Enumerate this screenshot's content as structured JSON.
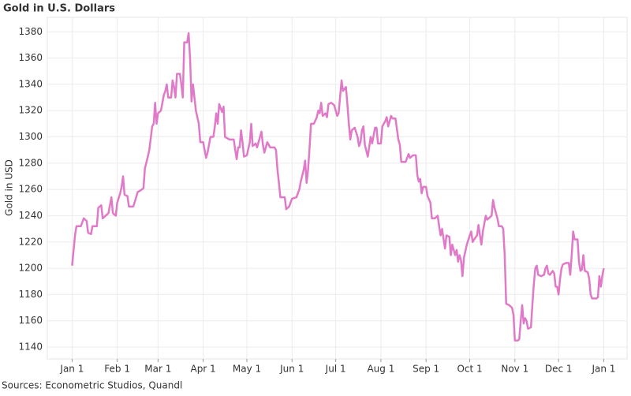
{
  "chart_data": {
    "type": "line",
    "title": "Gold in U.S. Dollars",
    "y_label": "Gold in USD",
    "source": "Sources: Econometric Studios, Quandl",
    "xlim": [
      -17,
      381
    ],
    "ylim": [
      1131,
      1391
    ],
    "xticks": [
      {
        "value": 0,
        "label": "Jan 1"
      },
      {
        "value": 31,
        "label": "Feb 1"
      },
      {
        "value": 59,
        "label": "Mar 1"
      },
      {
        "value": 90,
        "label": "Apr 1"
      },
      {
        "value": 120,
        "label": "May 1"
      },
      {
        "value": 151,
        "label": "Jun 1"
      },
      {
        "value": 181,
        "label": "Jul 1"
      },
      {
        "value": 212,
        "label": "Aug 1"
      },
      {
        "value": 243,
        "label": "Sep 1"
      },
      {
        "value": 273,
        "label": "Oct 1"
      },
      {
        "value": 304,
        "label": "Nov 1"
      },
      {
        "value": 334,
        "label": "Dec 1"
      },
      {
        "value": 365,
        "label": "Jan 1"
      }
    ],
    "yticks": [
      1140,
      1160,
      1180,
      1200,
      1220,
      1240,
      1260,
      1280,
      1300,
      1320,
      1340,
      1360,
      1380
    ],
    "grid": true,
    "x": [
      0,
      2,
      3,
      6,
      8,
      10,
      11,
      13,
      14,
      17,
      18,
      20,
      21,
      24,
      25,
      27,
      28,
      30,
      31,
      33,
      34,
      35,
      36,
      38,
      39,
      42,
      44,
      45,
      48,
      49,
      50,
      52,
      53,
      55,
      56,
      57,
      58,
      59,
      61,
      63,
      64,
      65,
      66,
      68,
      69,
      70,
      71,
      72,
      74,
      75,
      76,
      77,
      79,
      80,
      81,
      82,
      83,
      84,
      85,
      86,
      87,
      88,
      90,
      91,
      92,
      93,
      95,
      97,
      98,
      99,
      100,
      101,
      103,
      104,
      105,
      108,
      111,
      112,
      113,
      114,
      115,
      116,
      117,
      118,
      120,
      122,
      123,
      124,
      126,
      127,
      129,
      130,
      131,
      132,
      134,
      136,
      139,
      140,
      141,
      142,
      143,
      146,
      147,
      149,
      151,
      154,
      156,
      157,
      159,
      160,
      161,
      162,
      163,
      164,
      166,
      168,
      169,
      170,
      171,
      172,
      174,
      175,
      176,
      178,
      180,
      181,
      182,
      183,
      185,
      186,
      188,
      189,
      190,
      191,
      192,
      194,
      196,
      197,
      198,
      199,
      200,
      201,
      203,
      205,
      206,
      208,
      209,
      210,
      212,
      213,
      215,
      216,
      217,
      219,
      220,
      222,
      224,
      225,
      226,
      229,
      230,
      231,
      232,
      234,
      236,
      237,
      238,
      239,
      240,
      241,
      243,
      244,
      246,
      247,
      249,
      251,
      252,
      253,
      254,
      256,
      257,
      259,
      260,
      261,
      263,
      264,
      265,
      266,
      267,
      268,
      269,
      271,
      273,
      274,
      275,
      276,
      278,
      279,
      280,
      281,
      282,
      284,
      285,
      286,
      288,
      289,
      290,
      292,
      293,
      295,
      296,
      297,
      298,
      300,
      302,
      303,
      304,
      306,
      307,
      308,
      309,
      310,
      311,
      312,
      313,
      315,
      316,
      317,
      318,
      319,
      320,
      322,
      324,
      325,
      326,
      327,
      328,
      330,
      331,
      332,
      333,
      334,
      335,
      336,
      337,
      339,
      341,
      342,
      343,
      344,
      345,
      347,
      348,
      349,
      350,
      351,
      352,
      354,
      355,
      356,
      357,
      360,
      361,
      362,
      363,
      364,
      365
    ],
    "series": [
      {
        "name": "Gold",
        "color": "#e07ac8",
        "values": [
          1202,
          1225,
          1232,
          1232,
          1238,
          1236,
          1227,
          1226,
          1232,
          1232,
          1246,
          1248,
          1238,
          1241,
          1242,
          1254,
          1242,
          1240,
          1250,
          1257,
          1262,
          1270,
          1256,
          1255,
          1247,
          1247,
          1254,
          1258,
          1260,
          1261,
          1276,
          1285,
          1290,
          1308,
          1310,
          1326,
          1310,
          1318,
          1320,
          1332,
          1335,
          1340,
          1330,
          1330,
          1343,
          1338,
          1330,
          1348,
          1348,
          1340,
          1330,
          1372,
          1372,
          1379,
          1360,
          1327,
          1340,
          1330,
          1320,
          1315,
          1310,
          1296,
          1296,
          1290,
          1284,
          1288,
          1300,
          1300,
          1308,
          1318,
          1310,
          1325,
          1319,
          1323,
          1300,
          1298,
          1298,
          1290,
          1283,
          1292,
          1292,
          1305,
          1296,
          1285,
          1286,
          1296,
          1310,
          1293,
          1295,
          1292,
          1300,
          1304,
          1294,
          1288,
          1296,
          1292,
          1292,
          1290,
          1275,
          1265,
          1254,
          1254,
          1245,
          1247,
          1253,
          1254,
          1260,
          1266,
          1275,
          1282,
          1265,
          1275,
          1291,
          1310,
          1310,
          1315,
          1320,
          1318,
          1326,
          1316,
          1318,
          1315,
          1325,
          1326,
          1324,
          1320,
          1316,
          1318,
          1343,
          1335,
          1338,
          1325,
          1310,
          1298,
          1305,
          1307,
          1300,
          1293,
          1296,
          1305,
          1308,
          1294,
          1285,
          1300,
          1295,
          1307,
          1307,
          1295,
          1295,
          1308,
          1312,
          1315,
          1308,
          1316,
          1314,
          1314,
          1298,
          1294,
          1281,
          1281,
          1284,
          1287,
          1284,
          1286,
          1286,
          1271,
          1266,
          1268,
          1257,
          1262,
          1262,
          1255,
          1250,
          1238,
          1238,
          1240,
          1232,
          1225,
          1230,
          1215,
          1225,
          1224,
          1210,
          1218,
          1210,
          1214,
          1205,
          1210,
          1206,
          1194,
          1208,
          1218,
          1225,
          1228,
          1220,
          1222,
          1225,
          1233,
          1225,
          1218,
          1228,
          1240,
          1237,
          1238,
          1240,
          1252,
          1246,
          1238,
          1232,
          1232,
          1230,
          1210,
          1173,
          1172,
          1170,
          1165,
          1145,
          1145,
          1146,
          1160,
          1172,
          1158,
          1162,
          1160,
          1154,
          1155,
          1172,
          1188,
          1200,
          1202,
          1195,
          1194,
          1195,
          1200,
          1202,
          1196,
          1195,
          1198,
          1196,
          1186,
          1186,
          1180,
          1192,
          1200,
          1203,
          1204,
          1204,
          1195,
          1210,
          1228,
          1222,
          1222,
          1205,
          1198,
          1199,
          1210,
          1198,
          1197,
          1192,
          1180,
          1177,
          1177,
          1178,
          1194,
          1186,
          1194,
          1200
        ]
      }
    ]
  }
}
